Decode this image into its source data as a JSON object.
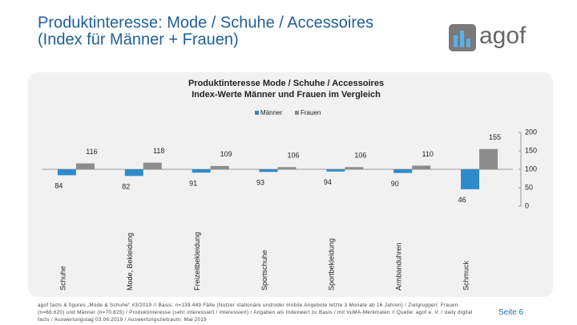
{
  "header": {
    "title_lines": [
      "Produktinteresse: Mode / Schuhe / Accessoires",
      "(Index für Männer + Frauen)"
    ],
    "logo": "agof"
  },
  "chart_data": {
    "type": "bar",
    "title_lines": [
      "Produktinteresse Mode / Schuhe / Accessoires",
      "Index-Werte Männer und Frauen im Vergleich"
    ],
    "categories": [
      "Schuhe",
      "Mode, Bekleidung",
      "Freizeitbekleidung",
      "Sportschuhe",
      "Sportbekleidung",
      "Armbanduhren",
      "Schmuck"
    ],
    "series": [
      {
        "name": "Männer",
        "color": "#2e8bc9",
        "values": [
          84,
          82,
          91,
          93,
          94,
          90,
          46
        ]
      },
      {
        "name": "Frauen",
        "color": "#8c8c8c",
        "values": [
          116,
          118,
          109,
          106,
          106,
          110,
          155
        ]
      }
    ],
    "bar_origin": 100,
    "ylim": [
      0,
      200
    ],
    "yticks": [
      0,
      50,
      100,
      150,
      200
    ],
    "y_axis_side": "right",
    "grid": false,
    "legend": "top"
  },
  "footer": {
    "note": "agof facts & figures „Mode & Schuhe“ #3/2019 // Basis: n=139.449 Fälle (Nutzer stationäre und/oder mobile Angebote letzte 3 Monate ab 16 Jahren) / Zielgruppen: Frauen (n=68.620) und Männer (n=70.825) / Produktinteresse (sehr interessiert / interessiert) / Angaben als Indexwert zu Basis / mit VuMA-Merkmalen // Quelle: agof e. V. / daily digital facts / Auswertungstag 03.06.2019 / Auswertungszeitraum: Mai 2019",
    "page": "Seite 6"
  }
}
